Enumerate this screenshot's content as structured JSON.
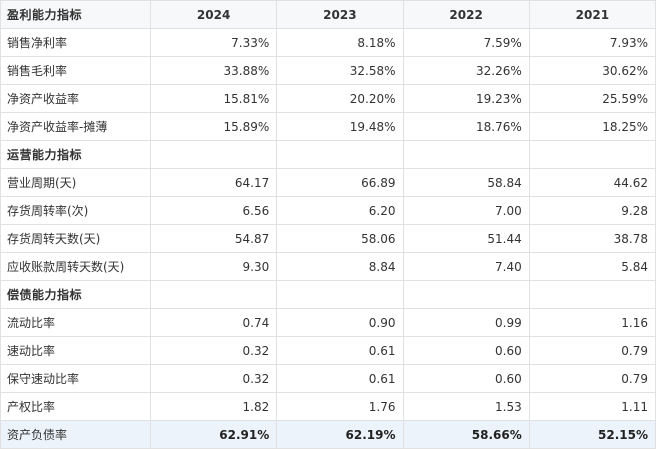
{
  "table": {
    "years": [
      "2024",
      "2023",
      "2022",
      "2021"
    ],
    "sections": [
      {
        "title": "盈利能力指标",
        "rows": [
          {
            "label": "销售净利率",
            "values": [
              "7.33%",
              "8.18%",
              "7.59%",
              "7.93%"
            ]
          },
          {
            "label": "销售毛利率",
            "values": [
              "33.88%",
              "32.58%",
              "32.26%",
              "30.62%"
            ]
          },
          {
            "label": "净资产收益率",
            "values": [
              "15.81%",
              "20.20%",
              "19.23%",
              "25.59%"
            ]
          },
          {
            "label": "净资产收益率-摊薄",
            "values": [
              "15.89%",
              "19.48%",
              "18.76%",
              "18.25%"
            ]
          }
        ]
      },
      {
        "title": "运营能力指标",
        "rows": [
          {
            "label": "营业周期(天)",
            "values": [
              "64.17",
              "66.89",
              "58.84",
              "44.62"
            ]
          },
          {
            "label": "存货周转率(次)",
            "values": [
              "6.56",
              "6.20",
              "7.00",
              "9.28"
            ]
          },
          {
            "label": "存货周转天数(天)",
            "values": [
              "54.87",
              "58.06",
              "51.44",
              "38.78"
            ]
          },
          {
            "label": "应收账款周转天数(天)",
            "values": [
              "9.30",
              "8.84",
              "7.40",
              "5.84"
            ]
          }
        ]
      },
      {
        "title": "偿债能力指标",
        "rows": [
          {
            "label": "流动比率",
            "values": [
              "0.74",
              "0.90",
              "0.99",
              "1.16"
            ]
          },
          {
            "label": "速动比率",
            "values": [
              "0.32",
              "0.61",
              "0.60",
              "0.79"
            ]
          },
          {
            "label": "保守速动比率",
            "values": [
              "0.32",
              "0.61",
              "0.60",
              "0.79"
            ]
          },
          {
            "label": "产权比率",
            "values": [
              "1.82",
              "1.76",
              "1.53",
              "1.11"
            ]
          },
          {
            "label": "资产负债率",
            "values": [
              "62.91%",
              "62.19%",
              "58.66%",
              "52.15%"
            ]
          }
        ]
      }
    ]
  }
}
